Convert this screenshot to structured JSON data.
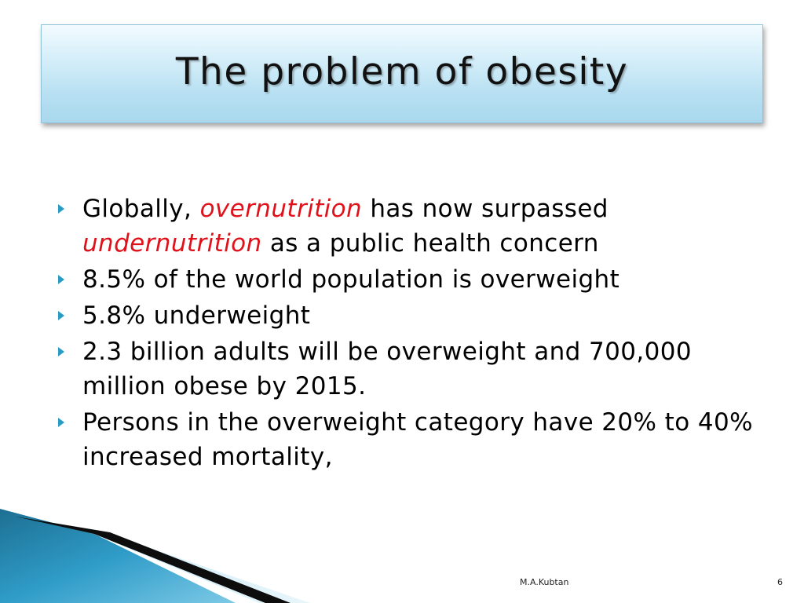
{
  "slide": {
    "title": "The problem of obesity",
    "bullets": [
      {
        "parts": [
          {
            "text": " Globally, ",
            "style": "normal"
          },
          {
            "text": "overnutrition",
            "style": "emphasis"
          },
          {
            "text": " has now surpassed ",
            "style": "normal"
          },
          {
            "text": "undernutrition",
            "style": "emphasis"
          },
          {
            "text": " as a public health concern",
            "style": "normal"
          }
        ]
      },
      {
        "parts": [
          {
            "text": "8.5% of the world population is overweight",
            "style": "normal"
          }
        ]
      },
      {
        "parts": [
          {
            "text": "5.8% underweight",
            "style": "normal"
          }
        ]
      },
      {
        "parts": [
          {
            "text": "2.3 billion adults will be overweight and 700,000 million obese by 2015.",
            "style": "normal"
          }
        ]
      },
      {
        "parts": [
          {
            "text": "Persons in the overweight category have 20% to 40% increased mortality,",
            "style": "normal"
          }
        ]
      }
    ],
    "bullet_icon": "right-triangle-bullet-icon",
    "footer": {
      "author": "M.A.Kubtan",
      "page_number": "6"
    }
  },
  "colors": {
    "emphasis": "#e0111a",
    "bullet": "#2a9bc4",
    "title_band_top": "#f2fbff",
    "title_band_bottom": "#a9d8ee"
  }
}
